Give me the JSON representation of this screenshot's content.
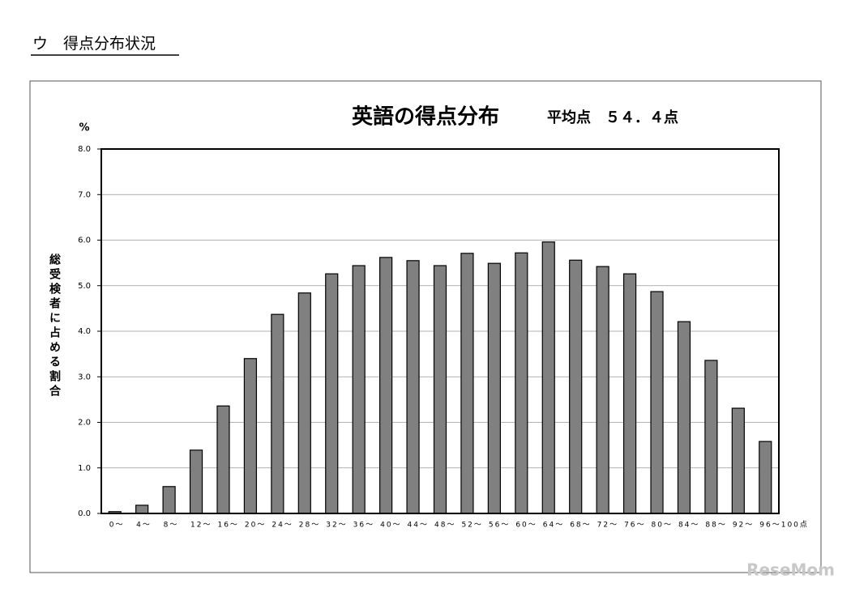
{
  "header": {
    "title": "ウ　得点分布状況"
  },
  "chart_data": {
    "type": "bar",
    "title": "英語の得点分布",
    "subtitle": "平均点　５４．４点",
    "y_unit": "%",
    "y_label": "総受検者に占める割合",
    "categories": [
      "0～",
      "4～",
      "8～",
      "12～",
      "16～",
      "20～",
      "24～",
      "28～",
      "32～",
      "36～",
      "40～",
      "44～",
      "48～",
      "52～",
      "56～",
      "60～",
      "64～",
      "68～",
      "72～",
      "76～",
      "80～",
      "84～",
      "88～",
      "92～",
      "96～100点"
    ],
    "values": [
      0.04,
      0.18,
      0.59,
      1.39,
      2.36,
      3.4,
      4.37,
      4.84,
      5.26,
      5.44,
      5.62,
      5.55,
      5.44,
      5.71,
      5.49,
      5.72,
      5.96,
      5.56,
      5.42,
      5.26,
      4.87,
      4.21,
      3.36,
      2.31,
      1.58
    ],
    "color": "#808080",
    "ylim": [
      0,
      8
    ],
    "yticks": [
      {
        "value": 0,
        "label": "0.0"
      },
      {
        "value": 1,
        "label": "1.0"
      },
      {
        "value": 2,
        "label": "2.0"
      },
      {
        "value": 3,
        "label": "3.0"
      },
      {
        "value": 4,
        "label": "4.0"
      },
      {
        "value": 5,
        "label": "5.0"
      },
      {
        "value": 6,
        "label": "6.0"
      },
      {
        "value": 7,
        "label": "7.0"
      },
      {
        "value": 8,
        "label": "8.0"
      }
    ],
    "grid": true
  },
  "watermark": "ReseMom"
}
